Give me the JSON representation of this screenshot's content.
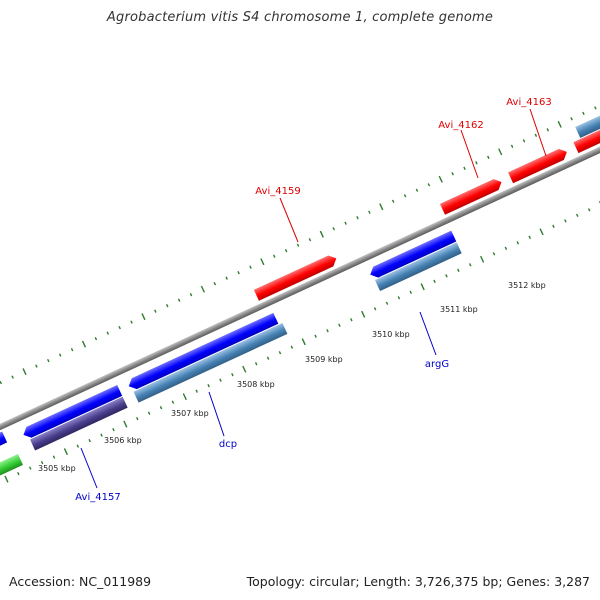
{
  "title": "Agrobacterium vitis S4 chromosome 1, complete genome",
  "footer": {
    "accession": "Accession: NC_011989",
    "summary": "Topology: circular; Length: 3,726,375 bp; Genes: 3,287"
  },
  "colors": {
    "backbone": "#8a8a8a",
    "tick": "#2e7d2e",
    "forward_gene": "#ff1a1a",
    "reverse_gene": "#1a1aff",
    "steelblue_gene": "#4682b4",
    "darkslate_gene": "#483d8b",
    "green_gene": "#33cc33",
    "red_label": "#e00000",
    "blue_label": "#0000cc"
  },
  "scale": {
    "unit": "kbp",
    "labels": [
      "3505 kbp",
      "3506 kbp",
      "3507 kbp",
      "3508 kbp",
      "3509 kbp",
      "3510 kbp",
      "3511 kbp",
      "3512 kbp"
    ]
  },
  "features": {
    "forward": [
      "gene",
      "gene",
      "gene",
      "gene",
      "gene"
    ],
    "reverse": [
      "gene",
      "gene",
      "gene",
      "gene",
      "gene",
      "gene"
    ],
    "reverse_secondary": [
      "gene",
      "gene",
      "gene",
      "gene",
      "gene"
    ]
  },
  "labels": {
    "forward": [
      "Avi_4159",
      "Avi_4162",
      "Avi_4163"
    ],
    "reverse": [
      "Avi_4157",
      "dcp",
      "argG"
    ]
  }
}
